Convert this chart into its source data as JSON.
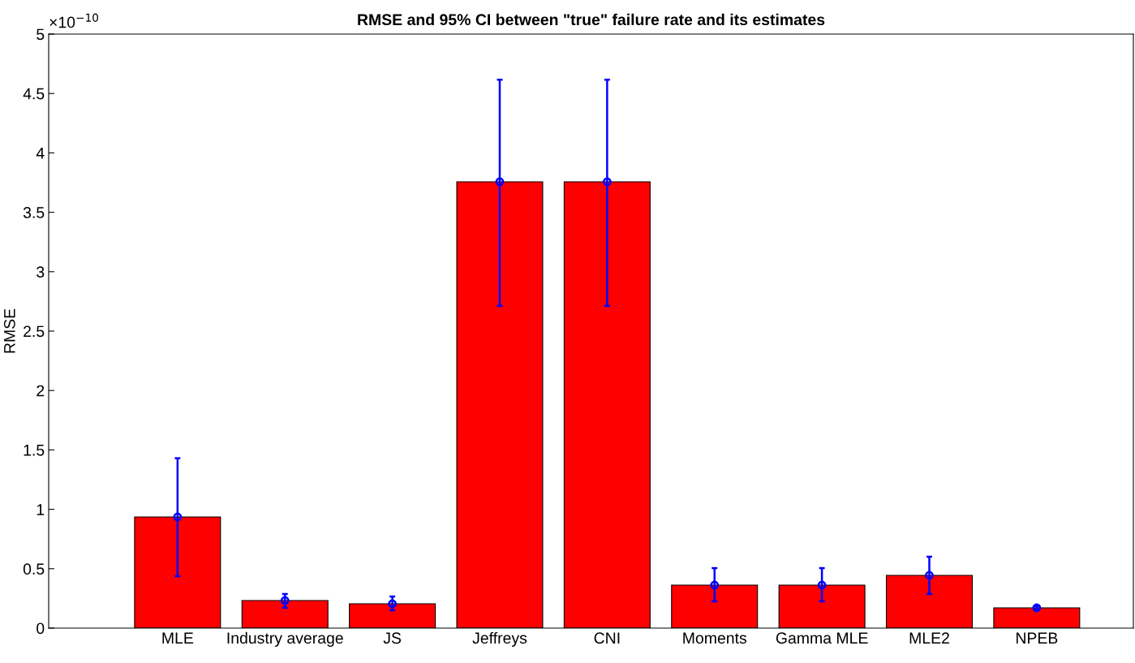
{
  "chart_data": {
    "type": "bar",
    "title": "RMSE and 95% CI between \"true\" failure rate and its estimates",
    "ylabel": "RMSE",
    "categories": [
      "MLE",
      "Industry average",
      "JS",
      "Jeffreys",
      "CNI",
      "Moments",
      "Gamma MLE",
      "MLE2",
      "NPEB"
    ],
    "series": [
      {
        "color": "#ff0000",
        "values": [
          0.936,
          0.232,
          0.205,
          3.757,
          3.757,
          0.362,
          0.362,
          0.444,
          0.171
        ]
      },
      {
        "type": "scatter",
        "color": "#0000ff",
        "marker": "circle",
        "values": [
          0.936,
          0.232,
          0.205,
          3.757,
          3.757,
          0.362,
          0.362,
          0.444,
          0.171
        ],
        "errors": [
          [
            0.437,
            1.43
          ],
          [
            0.171,
            0.287
          ],
          [
            0.15,
            0.266
          ],
          [
            2.712,
            4.616
          ],
          [
            2.712,
            4.616
          ],
          [
            0.225,
            0.505
          ],
          [
            0.225,
            0.505
          ],
          [
            0.287,
            0.601
          ],
          [
            0.157,
            0.184
          ]
        ]
      }
    ],
    "ylim": [
      0,
      5
    ],
    "yticks": [
      0,
      0.5,
      1,
      1.5,
      2,
      2.5,
      3,
      3.5,
      4,
      4.5,
      5
    ],
    "annotations": [
      "×10$^{−10}$"
    ],
    "grid": false,
    "legend": false
  }
}
